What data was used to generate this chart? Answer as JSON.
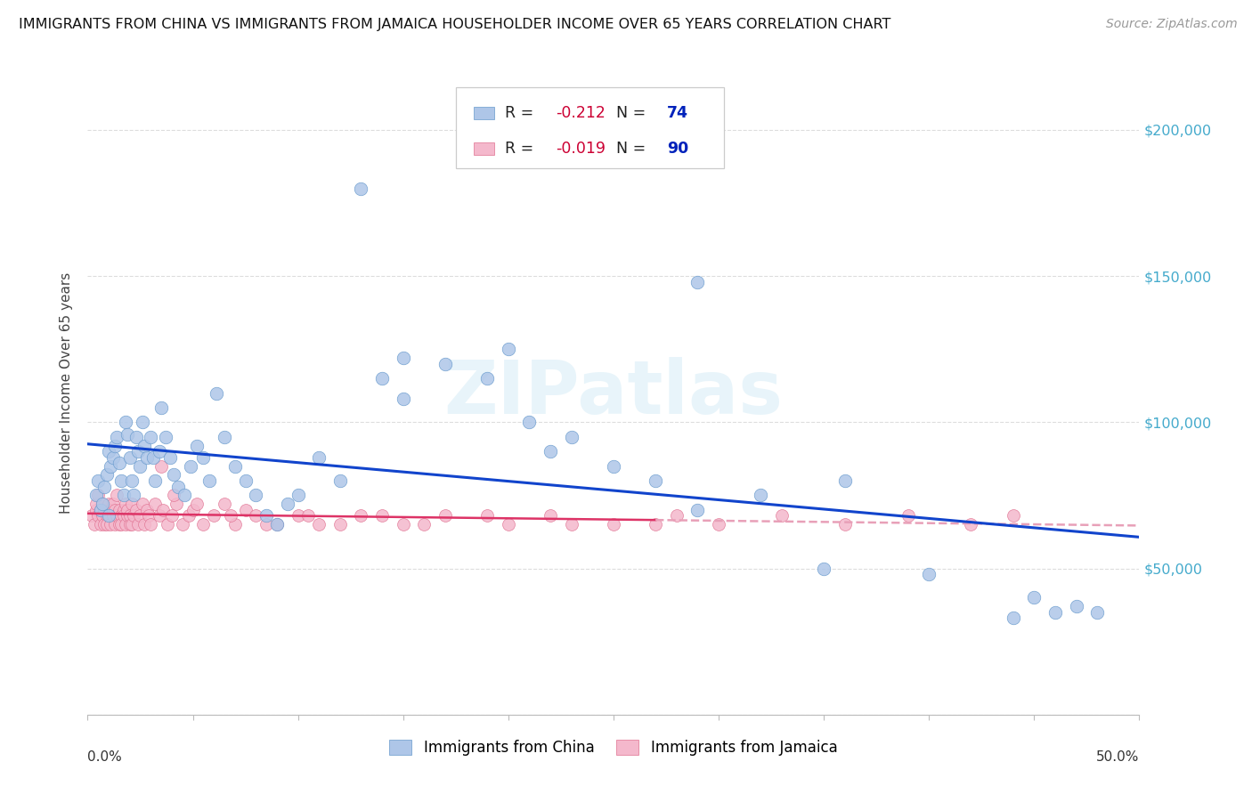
{
  "title": "IMMIGRANTS FROM CHINA VS IMMIGRANTS FROM JAMAICA HOUSEHOLDER INCOME OVER 65 YEARS CORRELATION CHART",
  "source": "Source: ZipAtlas.com",
  "ylabel": "Householder Income Over 65 years",
  "xlim": [
    0.0,
    50.0
  ],
  "ylim": [
    0,
    220000
  ],
  "yticks": [
    0,
    50000,
    100000,
    150000,
    200000
  ],
  "ytick_labels": [
    "",
    "$50,000",
    "$100,000",
    "$150,000",
    "$200,000"
  ],
  "china_R": -0.212,
  "china_N": 74,
  "jamaica_R": -0.019,
  "jamaica_N": 90,
  "china_color": "#aec6e8",
  "china_edge": "#6699cc",
  "jamaica_color": "#f4b8cc",
  "jamaica_edge": "#e07090",
  "china_line_color": "#1144cc",
  "jamaica_line_color": "#dd3366",
  "jamaica_line_dash_color": "#e8a0b8",
  "right_tick_color": "#44aacc",
  "watermark": "ZIPatlas",
  "title_color": "#111111",
  "source_color": "#999999",
  "legend_R_color": "#cc0033",
  "legend_N_color": "#0022bb",
  "grid_color": "#dddddd",
  "china_x": [
    0.4,
    0.5,
    0.6,
    0.7,
    0.8,
    0.9,
    1.0,
    1.0,
    1.1,
    1.2,
    1.3,
    1.4,
    1.5,
    1.6,
    1.7,
    1.8,
    1.9,
    2.0,
    2.1,
    2.2,
    2.3,
    2.4,
    2.5,
    2.6,
    2.7,
    2.8,
    3.0,
    3.1,
    3.2,
    3.4,
    3.5,
    3.7,
    3.9,
    4.1,
    4.3,
    4.6,
    4.9,
    5.2,
    5.5,
    5.8,
    6.1,
    6.5,
    7.0,
    7.5,
    8.0,
    8.5,
    9.0,
    9.5,
    10.0,
    11.0,
    12.0,
    13.0,
    14.0,
    15.0,
    17.0,
    19.0,
    21.0,
    23.0,
    25.0,
    27.0,
    29.0,
    32.0,
    36.0,
    40.0,
    44.0,
    45.0,
    46.0,
    47.0,
    29.0,
    35.0,
    20.0,
    15.0,
    22.0,
    48.0
  ],
  "china_y": [
    75000,
    80000,
    70000,
    72000,
    78000,
    82000,
    68000,
    90000,
    85000,
    88000,
    92000,
    95000,
    86000,
    80000,
    75000,
    100000,
    96000,
    88000,
    80000,
    75000,
    95000,
    90000,
    85000,
    100000,
    92000,
    88000,
    95000,
    88000,
    80000,
    90000,
    105000,
    95000,
    88000,
    82000,
    78000,
    75000,
    85000,
    92000,
    88000,
    80000,
    110000,
    95000,
    85000,
    80000,
    75000,
    68000,
    65000,
    72000,
    75000,
    88000,
    80000,
    180000,
    115000,
    108000,
    120000,
    115000,
    100000,
    95000,
    85000,
    80000,
    70000,
    75000,
    80000,
    48000,
    33000,
    40000,
    35000,
    37000,
    148000,
    50000,
    125000,
    122000,
    90000,
    35000
  ],
  "jamaica_x": [
    0.2,
    0.3,
    0.4,
    0.4,
    0.5,
    0.5,
    0.6,
    0.6,
    0.7,
    0.7,
    0.8,
    0.8,
    0.9,
    0.9,
    1.0,
    1.0,
    1.1,
    1.1,
    1.2,
    1.2,
    1.3,
    1.3,
    1.4,
    1.4,
    1.5,
    1.5,
    1.6,
    1.6,
    1.7,
    1.7,
    1.8,
    1.8,
    1.9,
    1.9,
    2.0,
    2.0,
    2.1,
    2.1,
    2.2,
    2.3,
    2.4,
    2.5,
    2.6,
    2.7,
    2.8,
    2.9,
    3.0,
    3.2,
    3.4,
    3.6,
    3.8,
    4.0,
    4.2,
    4.5,
    4.8,
    5.0,
    5.5,
    6.0,
    6.5,
    7.0,
    7.5,
    8.0,
    9.0,
    10.0,
    11.0,
    13.0,
    15.0,
    17.0,
    20.0,
    22.0,
    25.0,
    28.0,
    30.0,
    33.0,
    36.0,
    39.0,
    42.0,
    44.0,
    27.0,
    3.5,
    4.1,
    5.2,
    6.8,
    8.5,
    10.5,
    12.0,
    14.0,
    16.0,
    19.0,
    23.0
  ],
  "jamaica_y": [
    68000,
    65000,
    70000,
    72000,
    68000,
    75000,
    65000,
    70000,
    68000,
    72000,
    65000,
    70000,
    68000,
    65000,
    72000,
    68000,
    70000,
    65000,
    68000,
    72000,
    65000,
    70000,
    68000,
    75000,
    65000,
    70000,
    68000,
    65000,
    70000,
    68000,
    72000,
    65000,
    68000,
    70000,
    65000,
    68000,
    72000,
    65000,
    68000,
    70000,
    65000,
    68000,
    72000,
    65000,
    70000,
    68000,
    65000,
    72000,
    68000,
    70000,
    65000,
    68000,
    72000,
    65000,
    68000,
    70000,
    65000,
    68000,
    72000,
    65000,
    70000,
    68000,
    65000,
    68000,
    65000,
    68000,
    65000,
    68000,
    65000,
    68000,
    65000,
    68000,
    65000,
    68000,
    65000,
    68000,
    65000,
    68000,
    65000,
    85000,
    75000,
    72000,
    68000,
    65000,
    68000,
    65000,
    68000,
    65000,
    68000,
    65000
  ]
}
